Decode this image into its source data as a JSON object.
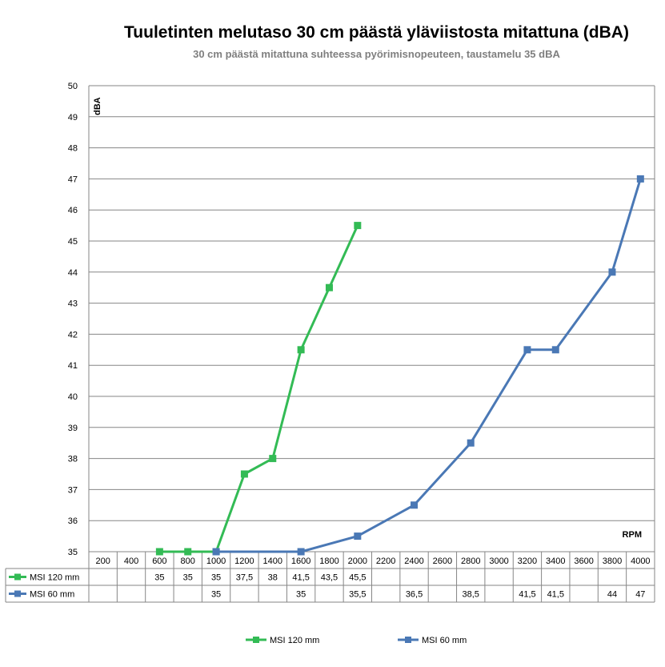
{
  "chart_data": {
    "type": "line",
    "title": "Tuuletinten melutaso 30 cm päästä yläviistosta mitattuna (dBA)",
    "subtitle": "30 cm päästä mitattuna suhteessa pyörimisnopeuteen, taustamelu 35 dBA",
    "xlabel": "RPM",
    "ylabel": "dBA",
    "ylim": [
      35,
      50
    ],
    "yticks": [
      35,
      36,
      37,
      38,
      39,
      40,
      41,
      42,
      43,
      44,
      45,
      46,
      47,
      48,
      49,
      50
    ],
    "categories": [
      "200",
      "400",
      "600",
      "800",
      "1000",
      "1200",
      "1400",
      "1600",
      "1800",
      "2000",
      "2200",
      "2400",
      "2600",
      "2800",
      "3000",
      "3200",
      "3400",
      "3600",
      "3800",
      "4000"
    ],
    "grid": true,
    "legend_position": "bottom",
    "series": [
      {
        "name": "MSI 120 mm",
        "color": "#33bb55",
        "values": [
          null,
          null,
          35,
          35,
          35,
          37.5,
          38,
          41.5,
          43.5,
          45.5,
          null,
          null,
          null,
          null,
          null,
          null,
          null,
          null,
          null,
          null
        ],
        "labels": [
          "",
          "",
          "35",
          "35",
          "35",
          "37,5",
          "38",
          "41,5",
          "43,5",
          "45,5",
          "",
          "",
          "",
          "",
          "",
          "",
          "",
          "",
          "",
          ""
        ]
      },
      {
        "name": "MSI 60 mm",
        "color": "#4a78b5",
        "values": [
          null,
          null,
          null,
          null,
          35,
          null,
          null,
          35,
          null,
          35.5,
          null,
          36.5,
          null,
          38.5,
          null,
          41.5,
          41.5,
          null,
          44,
          47
        ],
        "labels": [
          "",
          "",
          "",
          "",
          "35",
          "",
          "",
          "35",
          "",
          "35,5",
          "",
          "36,5",
          "",
          "38,5",
          "",
          "41,5",
          "41,5",
          "",
          "44",
          "47"
        ]
      }
    ]
  }
}
